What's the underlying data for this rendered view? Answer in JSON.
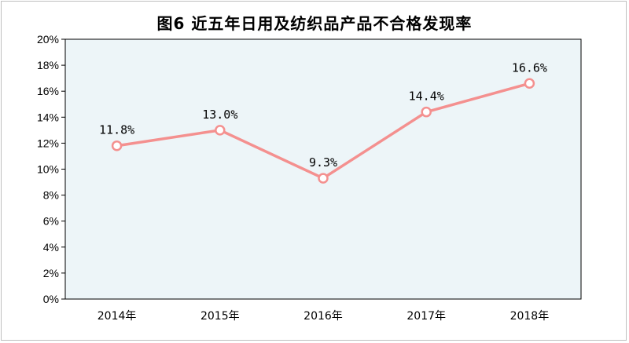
{
  "chart_data": {
    "type": "line",
    "title": "图6 近五年日用及纺织品产品不合格发现率",
    "categories": [
      "2014年",
      "2015年",
      "2016年",
      "2017年",
      "2018年"
    ],
    "series": [
      {
        "values": [
          11.8,
          13.0,
          9.3,
          14.4,
          16.6
        ],
        "data_labels": [
          "11.8%",
          "13.0%",
          "9.3%",
          "14.4%",
          "16.6%"
        ]
      }
    ],
    "y_ticks": [
      "0%",
      "2%",
      "4%",
      "6%",
      "8%",
      "10%",
      "12%",
      "14%",
      "16%",
      "18%",
      "20%"
    ],
    "ylim": [
      0,
      20
    ],
    "xlabel": "",
    "ylabel": "",
    "grid": false,
    "legend": "none",
    "colors": {
      "line": "#f4908f",
      "marker_fill": "#ffffff",
      "plot_background": "#edf5f8",
      "plot_border": "#000000"
    }
  }
}
